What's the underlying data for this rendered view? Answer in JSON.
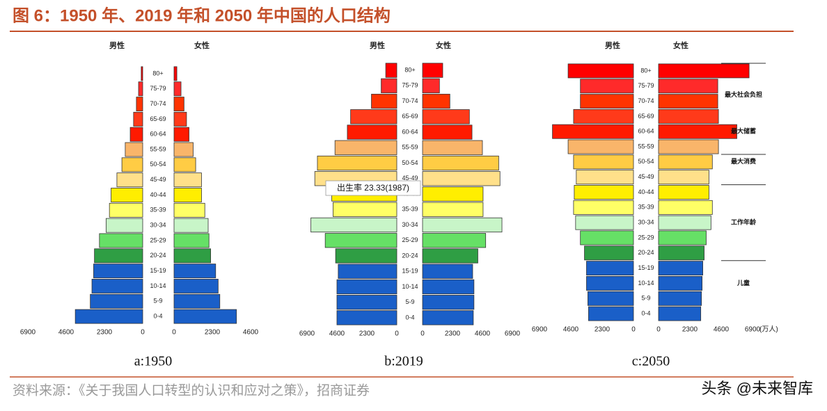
{
  "title": "图 6：1950 年、2019 年和 2050 年中国的人口结构",
  "source": "资料来源：《关于我国人口转型的认识和应对之策》，招商证券",
  "watermark": "头条 @未来智库",
  "chart_data": [
    {
      "type": "pyramid",
      "label": "a:1950",
      "categories": [
        "0-4",
        "5-9",
        "10-14",
        "15-19",
        "20-24",
        "25-29",
        "30-34",
        "35-39",
        "40-44",
        "45-49",
        "50-54",
        "55-59",
        "60-64",
        "65-69",
        "70-74",
        "75-79",
        "80+"
      ],
      "colors": [
        "#1a5fc8",
        "#1a5fc8",
        "#1a5fc8",
        "#1a5fc8",
        "#2f9e44",
        "#66e066",
        "#c8f5c8",
        "#ffff66",
        "#ffee00",
        "#ffe08a",
        "#ffcc44",
        "#f9b56a",
        "#ff1a00",
        "#ff3a1a",
        "#ff3300",
        "#ff2a2a",
        "#ff0000"
      ],
      "series": [
        {
          "name": "男性",
          "values": [
            4050,
            3150,
            3050,
            2950,
            2900,
            2600,
            2200,
            2000,
            1900,
            1550,
            1250,
            1050,
            750,
            550,
            380,
            250,
            90
          ]
        },
        {
          "name": "女性",
          "values": [
            3750,
            2750,
            2650,
            2500,
            2200,
            2100,
            2050,
            1850,
            1650,
            1650,
            1300,
            1150,
            900,
            750,
            600,
            420,
            170
          ]
        }
      ],
      "xlim": [
        0,
        6900
      ],
      "xticks_left": [
        6900,
        4600,
        2300,
        0
      ],
      "xticks_right": [
        0,
        2300,
        4600
      ]
    },
    {
      "type": "pyramid",
      "label": "b:2019",
      "categories": [
        "0-4",
        "5-9",
        "10-14",
        "15-19",
        "20-24",
        "25-29",
        "30-34",
        "35-39",
        "40-44",
        "45-49",
        "50-54",
        "55-59",
        "60-64",
        "65-69",
        "70-74",
        "75-79",
        "80+"
      ],
      "colors": [
        "#1a5fc8",
        "#1a5fc8",
        "#1a5fc8",
        "#1a5fc8",
        "#2f9e44",
        "#66e066",
        "#c8f5c8",
        "#ffff66",
        "#ffee00",
        "#ffe08a",
        "#ffcc44",
        "#f9b56a",
        "#ff1a00",
        "#ff3a1a",
        "#ff3300",
        "#ff2a2a",
        "#ff0000"
      ],
      "series": [
        {
          "name": "男性",
          "values": [
            4600,
            4600,
            4600,
            4500,
            4700,
            5500,
            6600,
            4900,
            5000,
            6300,
            6100,
            4750,
            3800,
            3550,
            1950,
            1200,
            850
          ]
        },
        {
          "name": "女性",
          "values": [
            3900,
            3950,
            3950,
            3850,
            4250,
            4850,
            6100,
            4650,
            4650,
            5950,
            5850,
            4600,
            3800,
            3600,
            2100,
            1300,
            1550
          ]
        }
      ],
      "xlim": [
        0,
        6900
      ],
      "xticks_left": [
        6900,
        4600,
        2300,
        0
      ],
      "xticks_right": [
        0,
        2300,
        4600,
        6900
      ],
      "annotation": "出生率 23.33(1987)"
    },
    {
      "type": "pyramid",
      "label": "c:2050",
      "categories": [
        "0-4",
        "5-9",
        "10-14",
        "15-19",
        "20-24",
        "25-29",
        "30-34",
        "35-39",
        "40-44",
        "45-49",
        "50-54",
        "55-59",
        "60-64",
        "65-69",
        "70-74",
        "75-79",
        "80+"
      ],
      "colors": [
        "#1a5fc8",
        "#1a5fc8",
        "#1a5fc8",
        "#1a5fc8",
        "#2f9e44",
        "#66e066",
        "#c8f5c8",
        "#ffff66",
        "#ffee00",
        "#ffe08a",
        "#ffcc44",
        "#f9b56a",
        "#ff1a00",
        "#ff3a1a",
        "#ff3300",
        "#ff2a2a",
        "#ff0000"
      ],
      "series": [
        {
          "name": "男性",
          "values": [
            3300,
            3350,
            3450,
            3450,
            3600,
            3900,
            4250,
            4400,
            4350,
            4200,
            4400,
            4800,
            5950,
            4400,
            3900,
            3900,
            4800
          ]
        },
        {
          "name": "女性",
          "values": [
            3100,
            3150,
            3200,
            3250,
            3350,
            3500,
            3850,
            3950,
            3700,
            3700,
            3950,
            4400,
            5750,
            4400,
            4350,
            4350,
            6650
          ]
        }
      ],
      "xlim": [
        0,
        6900
      ],
      "xticks_left": [
        6900,
        4600,
        2300,
        0
      ],
      "xticks_right": [
        0,
        2300,
        4600,
        6900
      ],
      "unit_label": "(万人)",
      "annotations": [
        "最大社会负担",
        "最大储蓄",
        "最大消费",
        "工作年龄",
        "儿童"
      ]
    }
  ]
}
